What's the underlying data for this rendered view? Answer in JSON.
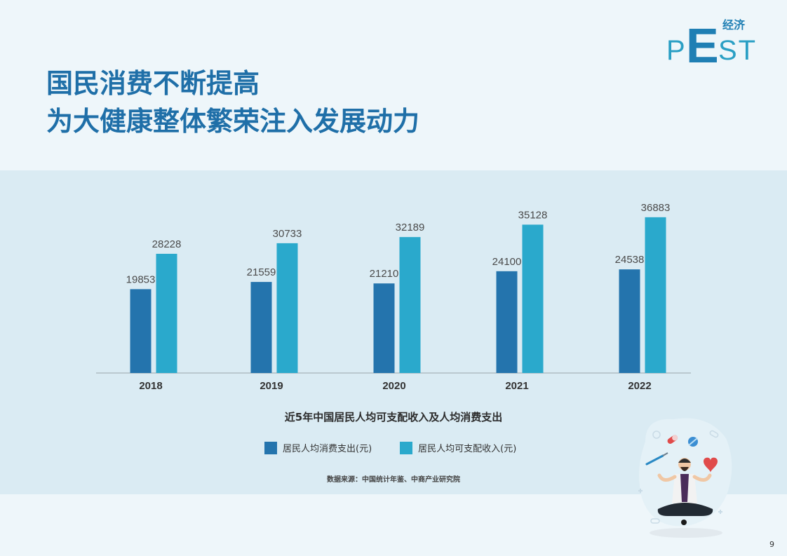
{
  "brand": {
    "latin_p": "P",
    "latin_e": "E",
    "latin_st": "ST",
    "chinese": "经济"
  },
  "title": {
    "line1": "国民消费不断提高",
    "line2": "为大健康整体繁荣注入发展动力"
  },
  "chart_data": {
    "type": "bar",
    "title": "近5年中国居民人均可支配收入及人均消费支出",
    "categories": [
      "2018",
      "2019",
      "2020",
      "2021",
      "2022"
    ],
    "series": [
      {
        "name": "居民人均消费支出(元)",
        "values": [
          19853,
          21559,
          21210,
          24100,
          24538
        ],
        "color": "#2474ad"
      },
      {
        "name": "居民人均可支配收入(元)",
        "values": [
          28228,
          30733,
          32189,
          35128,
          36883
        ],
        "color": "#2aa9cc"
      }
    ],
    "ylim": [
      0,
      43000
    ],
    "legend_position": "bottom",
    "grid": false
  },
  "source": "数据来源：中国统计年鉴、中商产业研究院",
  "page_number": "9"
}
